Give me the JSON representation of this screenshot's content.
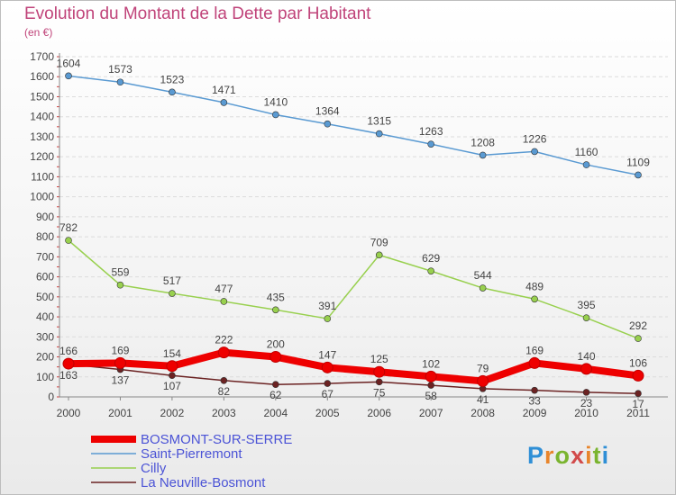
{
  "title": "Evolution du Montant de la Dette par Habitant",
  "unit": "(en €)",
  "logo": {
    "text": "Proxiti",
    "name": "proxiti-logo"
  },
  "chart_data": {
    "type": "line",
    "title": "Evolution du Montant de la Dette par Habitant",
    "ylabel": "(en €)",
    "xlabel": "",
    "ylim": [
      0,
      1700
    ],
    "yticks": [
      0,
      100,
      200,
      300,
      400,
      500,
      600,
      700,
      800,
      900,
      1000,
      1100,
      1200,
      1300,
      1400,
      1500,
      1600,
      1700
    ],
    "grid": true,
    "legend_position": "bottom-left",
    "categories": [
      "2000",
      "2001",
      "2002",
      "2003",
      "2004",
      "2005",
      "2006",
      "2007",
      "2008",
      "2009",
      "2010",
      "2011"
    ],
    "series": [
      {
        "name": "Saint-Pierremont",
        "color": "#5a9ad2",
        "values": [
          1604,
          1573,
          1523,
          1471,
          1410,
          1364,
          1315,
          1263,
          1208,
          1226,
          1160,
          1109
        ]
      },
      {
        "name": "Cilly",
        "color": "#98d04e",
        "values": [
          782,
          559,
          517,
          477,
          435,
          391,
          709,
          629,
          544,
          489,
          395,
          292
        ]
      },
      {
        "name": "La Neuville-Bosmont",
        "color": "#6b2222",
        "values": [
          163,
          137,
          107,
          82,
          62,
          67,
          75,
          58,
          41,
          33,
          23,
          17
        ]
      },
      {
        "name": "BOSMONT-SUR-SERRE",
        "color": "#ee0000",
        "values": [
          166,
          169,
          154,
          222,
          200,
          147,
          125,
          102,
          79,
          169,
          140,
          106
        ]
      }
    ],
    "legend_order": [
      "BOSMONT-SUR-SERRE",
      "Saint-Pierremont",
      "Cilly",
      "La Neuville-Bosmont"
    ]
  }
}
